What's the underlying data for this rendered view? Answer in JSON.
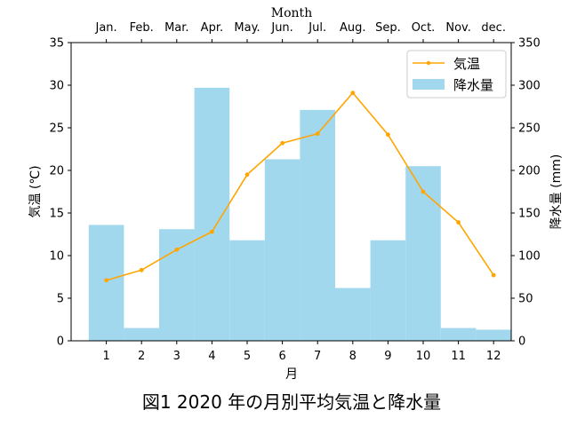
{
  "chart_data": {
    "type": "bar+line",
    "title": "図1 2020 年の月別平均気温と降水量",
    "top_xlabel": "Month",
    "top_categories": [
      "Jan.",
      "Feb.",
      "Mar.",
      "Apr.",
      "May.",
      "Jun.",
      "Jul.",
      "Aug.",
      "Sep.",
      "Oct.",
      "Nov.",
      "dec."
    ],
    "xlabel": "月",
    "categories": [
      "1",
      "2",
      "3",
      "4",
      "5",
      "6",
      "7",
      "8",
      "9",
      "10",
      "11",
      "12"
    ],
    "ylabel_left": "気温 (℃)",
    "ylabel_right": "降水量 (mm)",
    "ylim_left": [
      0,
      35
    ],
    "ylim_right": [
      0,
      350
    ],
    "yticks_left": [
      0,
      5,
      10,
      15,
      20,
      25,
      30,
      35
    ],
    "yticks_right": [
      0,
      50,
      100,
      150,
      200,
      250,
      300,
      350
    ],
    "legend_position": "top-right",
    "series": [
      {
        "name": "気温",
        "kind": "line",
        "axis": "left",
        "color": "#FFA500",
        "values": [
          7.1,
          8.3,
          10.7,
          12.8,
          19.5,
          23.2,
          24.3,
          29.1,
          24.2,
          17.5,
          13.9,
          7.7
        ]
      },
      {
        "name": "降水量",
        "kind": "bar",
        "axis": "right",
        "color": "#A1D8EE",
        "values": [
          136,
          15,
          131,
          297,
          118,
          213,
          271,
          62,
          118,
          205,
          15,
          13
        ]
      }
    ]
  }
}
